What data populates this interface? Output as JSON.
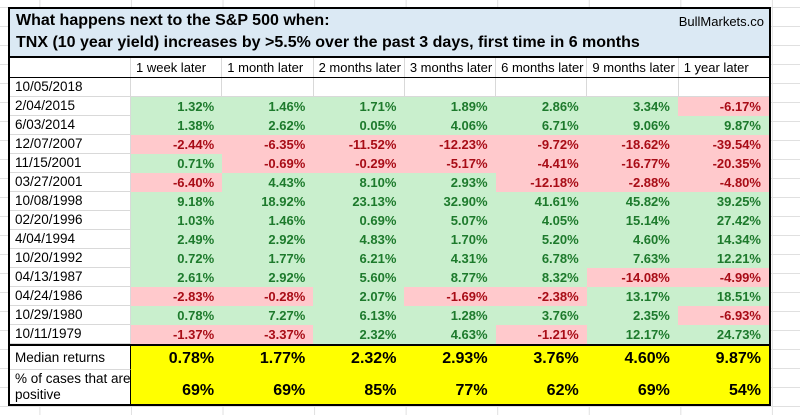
{
  "header": {
    "title_line1": "What happens next to the S&P 500 when:",
    "title_line2": "TNX (10 year yield) increases by >5.5% over the past 3 days, first time in 6 months",
    "brand": "BullMarkets.co"
  },
  "table": {
    "columns": [
      "1 week later",
      "1 month later",
      "2 months later",
      "3 months later",
      "6 months later",
      "9 months later",
      "1 year later"
    ],
    "rows": [
      {
        "date": "10/05/2018",
        "values": [
          "",
          "",
          "",
          "",
          "",
          "",
          ""
        ]
      },
      {
        "date": "2/04/2015",
        "values": [
          "1.32%",
          "1.46%",
          "1.71%",
          "1.89%",
          "2.86%",
          "3.34%",
          "-6.17%"
        ]
      },
      {
        "date": "6/03/2014",
        "values": [
          "1.38%",
          "2.62%",
          "0.05%",
          "4.06%",
          "6.71%",
          "9.06%",
          "9.87%"
        ]
      },
      {
        "date": "12/07/2007",
        "values": [
          "-2.44%",
          "-6.35%",
          "-11.52%",
          "-12.23%",
          "-9.72%",
          "-18.62%",
          "-39.54%"
        ]
      },
      {
        "date": "11/15/2001",
        "values": [
          "0.71%",
          "-0.69%",
          "-0.29%",
          "-5.17%",
          "-4.41%",
          "-16.77%",
          "-20.35%"
        ]
      },
      {
        "date": "03/27/2001",
        "values": [
          "-6.40%",
          "4.43%",
          "8.10%",
          "2.93%",
          "-12.18%",
          "-2.88%",
          "-4.80%"
        ]
      },
      {
        "date": "10/08/1998",
        "values": [
          "9.18%",
          "18.92%",
          "23.13%",
          "32.90%",
          "41.61%",
          "45.82%",
          "39.25%"
        ]
      },
      {
        "date": "02/20/1996",
        "values": [
          "1.03%",
          "1.46%",
          "0.69%",
          "5.07%",
          "4.05%",
          "15.14%",
          "27.42%"
        ]
      },
      {
        "date": "4/04/1994",
        "values": [
          "2.49%",
          "2.92%",
          "4.83%",
          "1.70%",
          "5.20%",
          "4.60%",
          "14.34%"
        ]
      },
      {
        "date": "10/20/1992",
        "values": [
          "0.72%",
          "1.77%",
          "6.21%",
          "4.31%",
          "6.78%",
          "7.63%",
          "12.21%"
        ]
      },
      {
        "date": "04/13/1987",
        "values": [
          "2.61%",
          "2.92%",
          "5.60%",
          "8.77%",
          "8.32%",
          "-14.08%",
          "-4.99%"
        ]
      },
      {
        "date": "04/24/1986",
        "values": [
          "-2.83%",
          "-0.28%",
          "2.07%",
          "-1.69%",
          "-2.38%",
          "13.17%",
          "18.51%"
        ]
      },
      {
        "date": "10/29/1980",
        "values": [
          "0.78%",
          "7.27%",
          "6.13%",
          "1.28%",
          "3.76%",
          "2.35%",
          "-6.93%"
        ]
      },
      {
        "date": "10/11/1979",
        "values": [
          "-1.37%",
          "-3.37%",
          "2.32%",
          "4.63%",
          "-1.21%",
          "12.17%",
          "24.73%"
        ]
      }
    ],
    "median": {
      "label": "Median returns",
      "values": [
        "0.78%",
        "1.77%",
        "2.32%",
        "2.93%",
        "3.76%",
        "4.60%",
        "9.87%"
      ]
    },
    "positive": {
      "label": "% of cases that are positive",
      "label_lines": [
        "% of cases that are",
        "positive"
      ],
      "values": [
        "69%",
        "69%",
        "85%",
        "77%",
        "62%",
        "69%",
        "54%"
      ]
    }
  },
  "colors": {
    "positive_bg": "#c9efcd",
    "positive_text": "#1d7a2c",
    "negative_bg": "#ffc9cc",
    "negative_text": "#a80c16",
    "summary_bg": "#ffff00",
    "title_bg": "#dbe9f4"
  }
}
